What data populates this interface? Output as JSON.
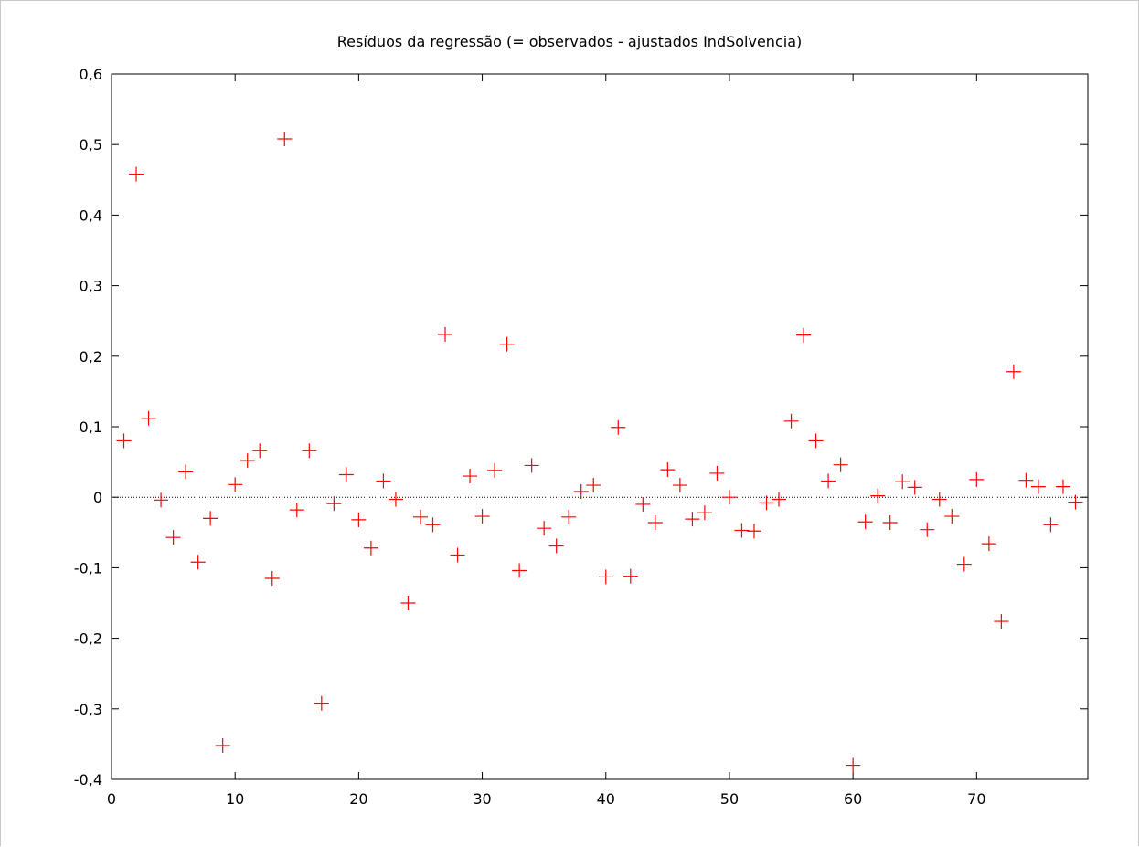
{
  "chart_data": {
    "type": "scatter",
    "title": "Resíduos da regressão (= observados - ajustados IndSolvencia)",
    "xlabel": "",
    "ylabel": "",
    "xlim": [
      0,
      79
    ],
    "ylim": [
      -0.4,
      0.6
    ],
    "xticks": [
      0,
      10,
      20,
      30,
      40,
      50,
      60,
      70
    ],
    "xtick_labels": [
      "0",
      "10",
      "20",
      "30",
      "40",
      "50",
      "60",
      "70"
    ],
    "yticks": [
      -0.4,
      -0.3,
      -0.2,
      -0.1,
      0,
      0.1,
      0.2,
      0.3,
      0.4,
      0.5,
      0.6
    ],
    "ytick_labels": [
      "-0,4",
      "-0,3",
      "-0,2",
      "-0,1",
      "0",
      "0,1",
      "0,2",
      "0,3",
      "0,4",
      "0,5",
      "0,6"
    ],
    "zero_line": true,
    "marker": "plus",
    "color": "#ff0000",
    "grid": false,
    "series": [
      {
        "x": [
          1,
          2,
          3,
          4,
          5,
          6,
          7,
          8,
          9,
          10,
          11,
          12,
          13,
          14,
          15,
          16,
          17,
          18,
          19,
          20,
          21,
          22,
          23,
          24,
          25,
          26,
          27,
          28,
          29,
          30,
          31,
          32,
          33,
          34,
          35,
          36,
          37,
          38,
          39,
          40,
          41,
          42,
          43,
          44,
          45,
          46,
          47,
          48,
          49,
          50,
          51,
          52,
          53,
          54,
          55,
          56,
          57,
          58,
          59,
          60,
          61,
          62,
          63,
          64,
          65,
          66,
          67,
          68,
          69,
          70,
          71,
          72,
          73,
          74,
          75,
          76,
          77,
          78
        ],
        "y": [
          0.08,
          0.458,
          0.112,
          -0.004,
          -0.057,
          0.036,
          -0.092,
          -0.03,
          -0.352,
          0.018,
          0.052,
          0.066,
          -0.115,
          0.508,
          -0.018,
          0.066,
          -0.292,
          -0.009,
          0.032,
          -0.032,
          -0.072,
          0.023,
          -0.003,
          -0.15,
          -0.028,
          -0.039,
          0.231,
          -0.082,
          0.03,
          -0.027,
          0.038,
          0.217,
          -0.104,
          0.045,
          -0.044,
          -0.069,
          -0.028,
          0.008,
          0.017,
          -0.113,
          0.099,
          -0.112,
          -0.01,
          -0.036,
          0.039,
          0.017,
          -0.031,
          -0.022,
          0.034,
          0.0,
          -0.047,
          -0.048,
          -0.008,
          -0.003,
          0.108,
          0.23,
          0.08,
          0.023,
          0.046,
          -0.38,
          -0.035,
          0.002,
          -0.036,
          0.022,
          0.014,
          -0.046,
          -0.003,
          -0.027,
          -0.095,
          0.025,
          -0.066,
          -0.176,
          0.178,
          0.024,
          0.015,
          -0.039,
          0.015,
          -0.007
        ]
      }
    ]
  }
}
